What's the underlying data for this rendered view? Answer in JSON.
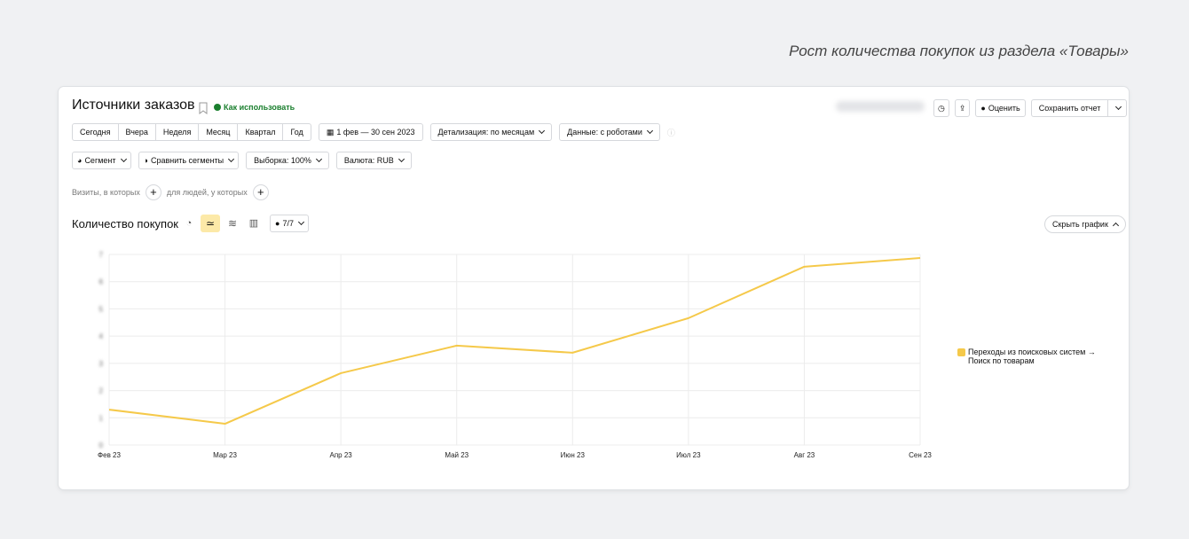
{
  "caption": "Рост количества покупок из раздела «Товары»",
  "report": {
    "title": "Источники заказов",
    "help": "Как использовать",
    "periods": [
      "Сегодня",
      "Вчера",
      "Неделя",
      "Месяц",
      "Квартал",
      "Год"
    ],
    "date_range": "1 фев — 30 сен 2023",
    "detail": "Детализация: по месяцам",
    "data_filter": "Данные: с роботами",
    "segment": "Сегмент",
    "compare": "Сравнить сегменты",
    "sample": "Выборка: 100%",
    "currency": "Валюта: RUB",
    "visits": "Визиты, в которых",
    "people": "для людей, у которых",
    "rate": "Оценить",
    "save": "Сохранить отчет",
    "hide_chart": "Скрыть график"
  },
  "chart_data": {
    "type": "line",
    "title": "Количество покупок",
    "series_counter": "7/7",
    "categories": [
      "Фев 23",
      "Мар 23",
      "Апр 23",
      "Май 23",
      "Июн 23",
      "Июл 23",
      "Авг 23",
      "Сен 23"
    ],
    "series": [
      {
        "name": "Переходы из поисковых систем → Поиск по товарам",
        "color": "#f5c94a",
        "values": [
          1.3,
          0.78,
          2.64,
          3.65,
          3.39,
          4.66,
          6.55,
          6.87
        ]
      }
    ],
    "ylim": [
      0,
      7
    ],
    "yticks": [
      0,
      1,
      2,
      3,
      4,
      5,
      6,
      7
    ],
    "grid": true
  }
}
